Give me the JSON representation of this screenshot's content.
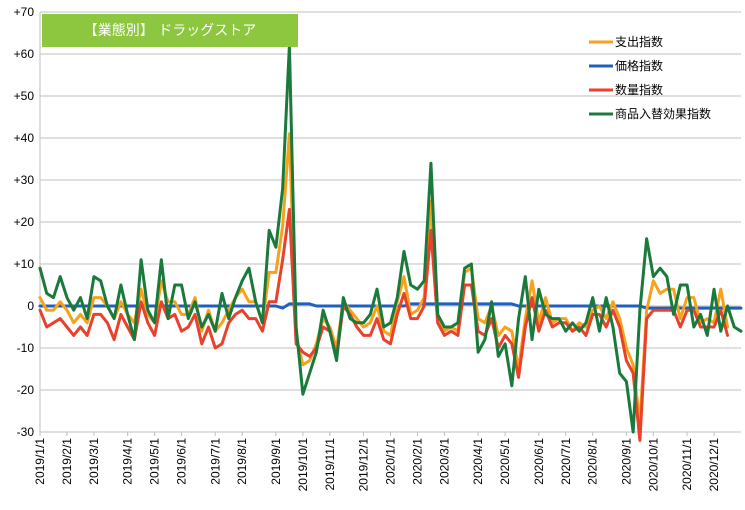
{
  "chart_data": {
    "type": "line",
    "title": "【業態別】 ドラッグストア",
    "title_box_color": "#8dc63f",
    "ylim": [
      -30,
      70
    ],
    "yticks": [
      {
        "value": 70,
        "label": "+70"
      },
      {
        "value": 60,
        "label": "+60"
      },
      {
        "value": 50,
        "label": "+50"
      },
      {
        "value": 40,
        "label": "+40"
      },
      {
        "value": 30,
        "label": "+30"
      },
      {
        "value": 20,
        "label": "+20"
      },
      {
        "value": 10,
        "label": "+10"
      },
      {
        "value": 0,
        "label": "0"
      },
      {
        "value": -10,
        "label": "-10"
      },
      {
        "value": -20,
        "label": "-20"
      },
      {
        "value": -30,
        "label": "-30"
      }
    ],
    "x_count": 105,
    "xticks": [
      {
        "index": 0,
        "label": "2019/1/1"
      },
      {
        "index": 4,
        "label": "2019/2/1"
      },
      {
        "index": 8,
        "label": "2019/3/1"
      },
      {
        "index": 13,
        "label": "2019/4/1"
      },
      {
        "index": 17,
        "label": "2019/5/1"
      },
      {
        "index": 21,
        "label": "2019/6/1"
      },
      {
        "index": 26,
        "label": "2019/7/1"
      },
      {
        "index": 30,
        "label": "2019/8/1"
      },
      {
        "index": 35,
        "label": "2019/9/1"
      },
      {
        "index": 39,
        "label": "2019/10/1"
      },
      {
        "index": 43,
        "label": "2019/11/1"
      },
      {
        "index": 48,
        "label": "2019/12/1"
      },
      {
        "index": 52,
        "label": "2020/1/1"
      },
      {
        "index": 56,
        "label": "2020/2/1"
      },
      {
        "index": 60,
        "label": "2020/3/1"
      },
      {
        "index": 65,
        "label": "2020/4/1"
      },
      {
        "index": 69,
        "label": "2020/5/1"
      },
      {
        "index": 74,
        "label": "2020/6/1"
      },
      {
        "index": 78,
        "label": "2020/7/1"
      },
      {
        "index": 82,
        "label": "2020/8/1"
      },
      {
        "index": 87,
        "label": "2020/9/1"
      },
      {
        "index": 91,
        "label": "2020/10/1"
      },
      {
        "index": 96,
        "label": "2020/11/1"
      },
      {
        "index": 100,
        "label": "2020/12/1"
      }
    ],
    "legend": {
      "placement": "top-right"
    },
    "series": [
      {
        "name": "支出指数",
        "color": "#f7a21a",
        "values": [
          2,
          -1,
          -1,
          1,
          -1,
          -4,
          -2,
          -4,
          2,
          2,
          0,
          -3,
          1,
          -2,
          -4,
          4,
          -2,
          -4,
          6,
          1,
          1,
          -2,
          -2,
          2,
          -6,
          -1,
          -6,
          -4,
          -1,
          2,
          4,
          1,
          1,
          -4,
          8,
          8,
          19,
          41,
          -7,
          -14,
          -13,
          -9,
          -3,
          -5,
          -10,
          1,
          -1,
          -3,
          -5,
          -4,
          0,
          -6,
          -7,
          1,
          7,
          -2,
          -1,
          2,
          25,
          -3,
          -6,
          -5,
          -6,
          8,
          9,
          -3,
          -4,
          0,
          -7,
          -5,
          -6,
          -15,
          -3,
          6,
          -4,
          2,
          -4,
          -3,
          -3,
          -6,
          -4,
          -5,
          -1,
          0,
          -3,
          1,
          -3,
          -10,
          -14,
          -28,
          -1,
          6,
          3,
          4,
          4,
          -3,
          2,
          2,
          -4,
          -3,
          -4,
          4,
          -5
        ]
      },
      {
        "name": "価格指数",
        "color": "#1f5fbf",
        "values": [
          0,
          0,
          0,
          0,
          0,
          0,
          0,
          0,
          0,
          0,
          0,
          0,
          0,
          0,
          0,
          0,
          0,
          0,
          0,
          0,
          0,
          0,
          0,
          0,
          0,
          0,
          0,
          0,
          0,
          0,
          0,
          0,
          0,
          0,
          0,
          0,
          -0.5,
          0.5,
          0.5,
          0.5,
          0.5,
          0,
          0,
          0,
          0,
          0,
          0,
          0,
          0,
          0,
          0,
          0,
          0,
          0,
          0,
          0.5,
          0.5,
          0.5,
          0.5,
          0.5,
          0.5,
          0.5,
          0.5,
          0.5,
          0.5,
          0.5,
          0.5,
          0.5,
          0.5,
          0.5,
          0.5,
          0,
          0,
          0,
          0,
          0,
          0,
          0,
          0,
          0,
          0,
          0,
          0,
          0,
          0,
          0,
          0,
          0,
          0,
          0,
          -0.5,
          -0.5,
          -0.5,
          -0.5,
          -0.5,
          -0.5,
          -0.5,
          -0.5,
          -0.5,
          -0.5,
          -0.5,
          -0.5,
          -0.5,
          -0.5,
          -0.5
        ]
      },
      {
        "name": "数量指数",
        "color": "#e8412c",
        "values": [
          -1,
          -5,
          -4,
          -3,
          -5,
          -7,
          -5,
          -7,
          -2,
          -2,
          -4,
          -8,
          -2,
          -5,
          -8,
          1,
          -4,
          -7,
          1,
          -3,
          -2,
          -6,
          -5,
          -2,
          -9,
          -5,
          -10,
          -9,
          -4,
          -2,
          -1,
          -3,
          -3,
          -6,
          1,
          1,
          11,
          23,
          -9,
          -11,
          -12,
          -10,
          -5,
          -6,
          -12,
          0,
          -2,
          -5,
          -7,
          -7,
          -3,
          -8,
          -9,
          -2,
          3,
          -3,
          -3,
          0,
          18,
          -4,
          -7,
          -6,
          -7,
          5,
          5,
          -6,
          -7,
          -3,
          -10,
          -7,
          -9,
          -17,
          -5,
          2,
          -6,
          -1,
          -5,
          -4,
          -4,
          -6,
          -5,
          -7,
          -2,
          -2,
          -5,
          -1,
          -5,
          -13,
          -16,
          -32,
          -3,
          -1,
          -1,
          -1,
          -1,
          -5,
          -1,
          -1,
          -5,
          -5,
          -5,
          -1,
          -7
        ]
      },
      {
        "name": "商品入替効果指数",
        "color": "#1a7a3c",
        "values": [
          9,
          3,
          2,
          7,
          2,
          -1,
          2,
          -3,
          7,
          6,
          0,
          -3,
          5,
          -2,
          -8,
          11,
          -1,
          -4,
          11,
          -3,
          5,
          5,
          -3,
          1,
          -5,
          -2,
          -6,
          3,
          -3,
          2,
          6,
          9,
          1,
          -4,
          18,
          14,
          28,
          62,
          -5,
          -21,
          -16,
          -11,
          -1,
          -6,
          -13,
          2,
          -3,
          -4,
          -4,
          -2,
          4,
          -5,
          -4,
          2,
          13,
          5,
          4,
          6,
          34,
          -2,
          -5,
          -5,
          -4,
          9,
          10,
          -11,
          -8,
          1,
          -12,
          -9,
          -19,
          -3,
          7,
          -8,
          4,
          -2,
          -3,
          -3,
          -6,
          -4,
          -6,
          -4,
          2,
          -6,
          2,
          -5,
          -16,
          -18,
          -30,
          -1,
          16,
          7,
          9,
          7,
          -2,
          5,
          5,
          -5,
          -2,
          -7,
          4,
          -6,
          0,
          -5,
          -6
        ]
      }
    ]
  }
}
